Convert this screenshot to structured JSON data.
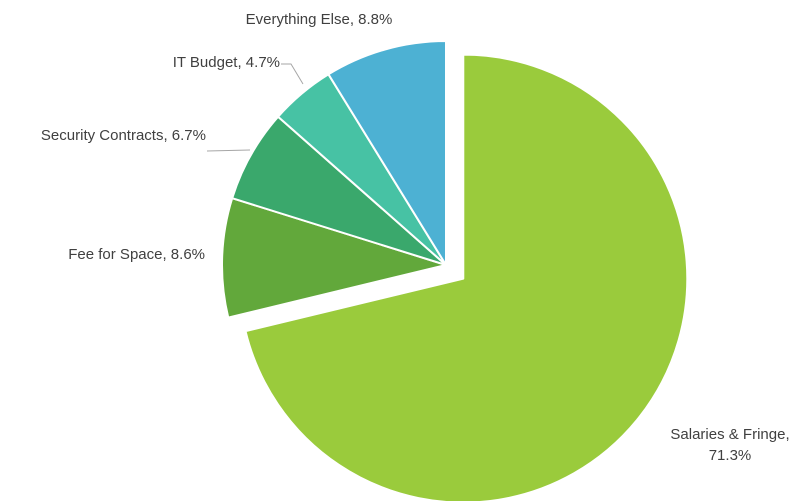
{
  "chart_data": {
    "type": "pie",
    "title": "",
    "legend": "none",
    "slices": [
      {
        "label": "Salaries & Fringe",
        "value": 71.3,
        "value_label": "71.3%",
        "color": "#9ACB3C",
        "exploded": true
      },
      {
        "label": "Fee for Space",
        "value": 8.6,
        "value_label": "8.6%",
        "color": "#62A83B",
        "exploded": false
      },
      {
        "label": "Security Contracts",
        "value": 6.7,
        "value_label": "6.7%",
        "color": "#3AA86C",
        "exploded": false
      },
      {
        "label": "IT Budget",
        "value": 4.7,
        "value_label": "4.7%",
        "color": "#47C2A4",
        "exploded": false
      },
      {
        "label": "Everything Else",
        "value": 8.8,
        "value_label": "8.8%",
        "color": "#4DB1D3",
        "exploded": false
      }
    ]
  }
}
